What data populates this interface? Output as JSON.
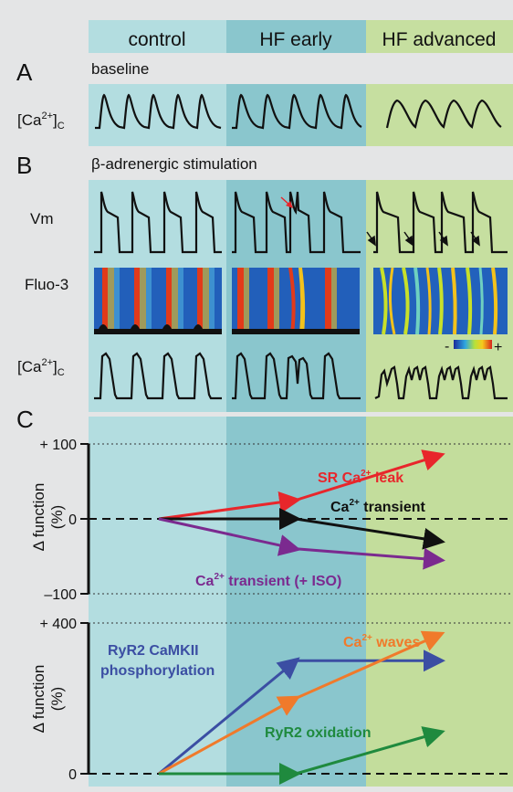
{
  "columns": [
    "control",
    "HF early",
    "HF advanced"
  ],
  "colors": {
    "page": "#e4e5e6",
    "control": "#b3dde0",
    "hf_early": "#8ac6cd",
    "hf_advanced": "#c6dfa0",
    "panelC_control": "#b3dde0",
    "panelC_early": "#8ac6cd",
    "panelC_advanced": "#c3dd9c",
    "trace": "#111111",
    "red": "#e8262b",
    "black": "#111111",
    "purple": "#7b2a8f",
    "blue": "#3b4ea3",
    "orange": "#f07a2b",
    "green": "#1f8a3e",
    "fluo_bg": "#1e55b0"
  },
  "panelA": {
    "letter": "A",
    "subtitle": "baseline",
    "row_label_main": "[Ca",
    "row_label_sup": "2+",
    "row_label_close": "]",
    "row_label_sub": "C"
  },
  "panelB": {
    "letter": "B",
    "subtitle": "β-adrenergic stimulation",
    "rows": {
      "vm": "Vm",
      "fluo": "Fluo-3",
      "ca_main": "[Ca",
      "ca_sup": "2+",
      "ca_close": "]",
      "ca_sub": "C"
    },
    "colorbar": {
      "minus": "-",
      "plus": "+"
    }
  },
  "panelC": {
    "letter": "C",
    "ylabel": "Δ function",
    "ylabel_unit": "(%)",
    "top_ticks": [
      "+ 100",
      "0",
      "–100"
    ],
    "bottom_ticks": [
      "+ 400",
      "0"
    ],
    "labels": {
      "sr_leak": "SR Ca",
      "sr_leak_sup": "2+",
      "sr_leak_end": " leak",
      "ca_transient": "Ca",
      "ca_transient_sup": "2+",
      "ca_transient_end": " transient",
      "ca_iso": "Ca",
      "ca_iso_sup": "2+",
      "ca_iso_end": " transient (+ ISO)",
      "ryr_camkii_1": "RyR2 CaMKII",
      "ryr_camkii_2": "phosphorylation",
      "ca_waves": "Ca",
      "ca_waves_sup": "2+",
      "ca_waves_end": " waves",
      "ryr_ox": "RyR2 oxidation"
    }
  },
  "chart_data": [
    {
      "type": "line",
      "x": [
        "control",
        "HF early",
        "HF advanced"
      ],
      "ylabel": "Δ function (%)",
      "ylim": [
        -100,
        100
      ],
      "series": [
        {
          "name": "SR Ca2+ leak",
          "values": [
            0,
            25,
            85
          ]
        },
        {
          "name": "Ca2+ transient",
          "values": [
            0,
            0,
            -30
          ]
        },
        {
          "name": "Ca2+ transient (+ ISO)",
          "values": [
            0,
            -40,
            -55
          ]
        }
      ]
    },
    {
      "type": "line",
      "x": [
        "control",
        "HF early",
        "HF advanced"
      ],
      "ylabel": "Δ function (%)",
      "ylim": [
        0,
        400
      ],
      "series": [
        {
          "name": "RyR2 CaMKII phosphorylation",
          "values": [
            0,
            300,
            300
          ]
        },
        {
          "name": "Ca2+ waves",
          "values": [
            0,
            200,
            370
          ]
        },
        {
          "name": "RyR2 oxidation",
          "values": [
            0,
            0,
            110
          ]
        }
      ]
    }
  ]
}
